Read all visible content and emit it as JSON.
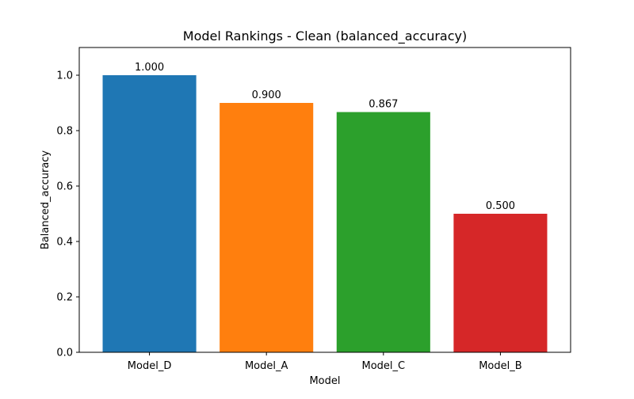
{
  "chart_data": {
    "type": "bar",
    "title": "Model Rankings - Clean (balanced_accuracy)",
    "xlabel": "Model",
    "ylabel": "Balanced_accuracy",
    "categories": [
      "Model_D",
      "Model_A",
      "Model_C",
      "Model_B"
    ],
    "values": [
      1.0,
      0.9,
      0.867,
      0.5
    ],
    "value_labels": [
      "1.000",
      "0.900",
      "0.867",
      "0.500"
    ],
    "colors": [
      "#1f77b4",
      "#ff7f0e",
      "#2ca02c",
      "#d62728"
    ],
    "ylim": [
      0,
      1.1
    ],
    "yticks": [
      0.0,
      0.2,
      0.4,
      0.6,
      0.8,
      1.0
    ],
    "ytick_labels": [
      "0.0",
      "0.2",
      "0.4",
      "0.6",
      "0.8",
      "1.0"
    ],
    "grid": false,
    "legend": "none"
  }
}
